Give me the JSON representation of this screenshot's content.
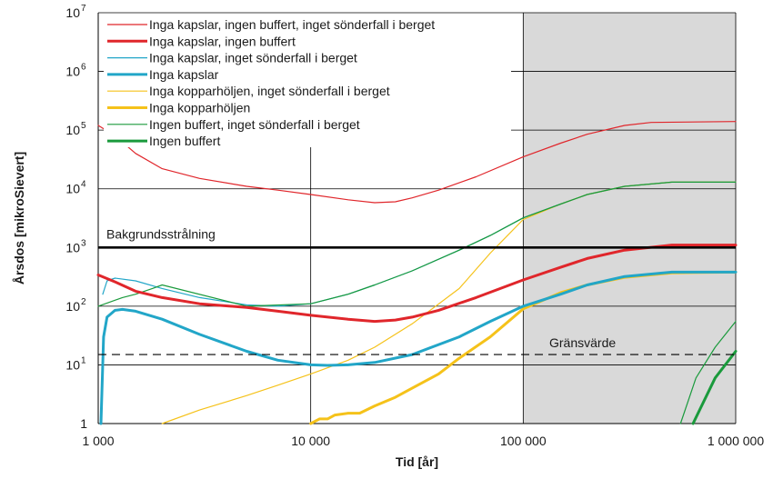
{
  "chart_data": {
    "type": "line",
    "title": "",
    "xlabel": "Tid [år]",
    "ylabel": "Årsdos [mikroSievert]",
    "x_scale": "log",
    "y_scale": "log",
    "xlim": [
      1000,
      1000000
    ],
    "ylim": [
      1,
      10000000
    ],
    "x_ticks": [
      {
        "value": 1000,
        "label": "1 000"
      },
      {
        "value": 10000,
        "label": "10 000"
      },
      {
        "value": 100000,
        "label": "100 000"
      },
      {
        "value": 1000000,
        "label": "1 000 000"
      }
    ],
    "y_ticks": [
      {
        "value": 1,
        "base": "1",
        "exp": ""
      },
      {
        "value": 10,
        "base": "10",
        "exp": "1"
      },
      {
        "value": 100,
        "base": "10",
        "exp": "2"
      },
      {
        "value": 1000,
        "base": "10",
        "exp": "3"
      },
      {
        "value": 10000,
        "base": "10",
        "exp": "4"
      },
      {
        "value": 100000,
        "base": "10",
        "exp": "5"
      },
      {
        "value": 1000000,
        "base": "10",
        "exp": "6"
      },
      {
        "value": 10000000,
        "base": "10",
        "exp": "7"
      }
    ],
    "grid": "horizontal major lines",
    "legend_position": "top-left",
    "shaded_region": {
      "x_from": 100000,
      "x_to": 1000000,
      "color": "#d9d9d9"
    },
    "vertical_marker_x": 10000,
    "reference_lines": [
      {
        "label": "Bakgrundsstrålning",
        "y": 1000,
        "style": "solid",
        "color": "#000000"
      },
      {
        "label": "Gränsvärde",
        "y": 15,
        "style": "dashed",
        "color": "#000000"
      }
    ],
    "series": [
      {
        "name": "Inga kapslar, ingen buffert, inget sönderfall i berget",
        "color": "#e0262b",
        "width": 1.2,
        "points": [
          [
            1000,
            120000
          ],
          [
            1200,
            80000
          ],
          [
            1500,
            40000
          ],
          [
            2000,
            22000
          ],
          [
            3000,
            15000
          ],
          [
            5000,
            11000
          ],
          [
            7000,
            9500
          ],
          [
            10000,
            8000
          ],
          [
            15000,
            6500
          ],
          [
            20000,
            5800
          ],
          [
            25000,
            6000
          ],
          [
            30000,
            7000
          ],
          [
            40000,
            9500
          ],
          [
            60000,
            16000
          ],
          [
            100000,
            35000
          ],
          [
            150000,
            60000
          ],
          [
            200000,
            85000
          ],
          [
            300000,
            120000
          ],
          [
            400000,
            135000
          ],
          [
            1000000,
            140000
          ]
        ]
      },
      {
        "name": "Inga kapslar, ingen buffert",
        "color": "#e0262b",
        "width": 3,
        "points": [
          [
            1000,
            340
          ],
          [
            1200,
            260
          ],
          [
            1500,
            180
          ],
          [
            2000,
            140
          ],
          [
            3000,
            110
          ],
          [
            5000,
            95
          ],
          [
            7000,
            82
          ],
          [
            10000,
            70
          ],
          [
            15000,
            60
          ],
          [
            20000,
            55
          ],
          [
            25000,
            58
          ],
          [
            30000,
            65
          ],
          [
            40000,
            85
          ],
          [
            60000,
            140
          ],
          [
            100000,
            280
          ],
          [
            150000,
            460
          ],
          [
            200000,
            650
          ],
          [
            300000,
            900
          ],
          [
            500000,
            1100
          ],
          [
            1000000,
            1100
          ]
        ]
      },
      {
        "name": "Inga kapslar, inget sönderfall i berget",
        "color": "#22a6c8",
        "width": 1.2,
        "points": [
          [
            1050,
            160
          ],
          [
            1100,
            270
          ],
          [
            1200,
            300
          ],
          [
            1500,
            270
          ],
          [
            2000,
            200
          ],
          [
            3000,
            140
          ],
          [
            5000,
            105
          ],
          [
            7000,
            100
          ],
          [
            10000,
            110
          ],
          [
            15000,
            160
          ],
          [
            20000,
            230
          ],
          [
            30000,
            400
          ],
          [
            50000,
            900
          ],
          [
            70000,
            1600
          ],
          [
            100000,
            3200
          ],
          [
            150000,
            5500
          ],
          [
            200000,
            8000
          ],
          [
            300000,
            11000
          ],
          [
            500000,
            13000
          ],
          [
            1000000,
            13000
          ]
        ]
      },
      {
        "name": "Inga kapslar",
        "color": "#22a6c8",
        "width": 3,
        "points": [
          [
            1030,
            1
          ],
          [
            1060,
            30
          ],
          [
            1100,
            65
          ],
          [
            1200,
            85
          ],
          [
            1300,
            88
          ],
          [
            1500,
            82
          ],
          [
            2000,
            60
          ],
          [
            3000,
            33
          ],
          [
            5000,
            17
          ],
          [
            7000,
            12
          ],
          [
            10000,
            10
          ],
          [
            12000,
            9.8
          ],
          [
            15000,
            10
          ],
          [
            20000,
            11
          ],
          [
            30000,
            15
          ],
          [
            50000,
            30
          ],
          [
            70000,
            55
          ],
          [
            100000,
            100
          ],
          [
            150000,
            160
          ],
          [
            200000,
            230
          ],
          [
            300000,
            320
          ],
          [
            500000,
            380
          ],
          [
            1000000,
            380
          ]
        ]
      },
      {
        "name": "Inga kopparhöljen, inget sönderfall i berget",
        "color": "#f5c21a",
        "width": 1.2,
        "points": [
          [
            2000,
            1
          ],
          [
            3000,
            1.7
          ],
          [
            5000,
            3
          ],
          [
            7000,
            4.5
          ],
          [
            10000,
            7
          ],
          [
            15000,
            12
          ],
          [
            20000,
            20
          ],
          [
            30000,
            50
          ],
          [
            50000,
            200
          ],
          [
            70000,
            800
          ],
          [
            100000,
            3000
          ],
          [
            150000,
            5500
          ],
          [
            200000,
            8000
          ],
          [
            300000,
            11000
          ],
          [
            500000,
            13000
          ],
          [
            1000000,
            13000
          ]
        ]
      },
      {
        "name": "Inga kopparhöljen",
        "color": "#f5c21a",
        "width": 3,
        "points": [
          [
            10000,
            1
          ],
          [
            11000,
            1.2
          ],
          [
            12000,
            1.2
          ],
          [
            13000,
            1.4
          ],
          [
            15000,
            1.5
          ],
          [
            17000,
            1.5
          ],
          [
            20000,
            2
          ],
          [
            25000,
            2.8
          ],
          [
            30000,
            4
          ],
          [
            40000,
            7
          ],
          [
            50000,
            13
          ],
          [
            70000,
            30
          ],
          [
            100000,
            90
          ],
          [
            150000,
            170
          ],
          [
            200000,
            230
          ],
          [
            300000,
            310
          ],
          [
            500000,
            370
          ],
          [
            1000000,
            380
          ]
        ]
      },
      {
        "name": "Ingen buffert, inget sönderfall i berget",
        "color": "#1a9a3c",
        "width": 1.2,
        "points": [
          [
            1000,
            100
          ],
          [
            1300,
            140
          ],
          [
            1500,
            160
          ],
          [
            1800,
            200
          ],
          [
            2000,
            230
          ],
          [
            5000,
            100
          ],
          [
            10000,
            110
          ],
          [
            15000,
            160
          ],
          [
            20000,
            230
          ],
          [
            30000,
            400
          ],
          [
            50000,
            900
          ],
          [
            70000,
            1600
          ],
          [
            100000,
            3200
          ],
          [
            150000,
            5500
          ],
          [
            200000,
            8000
          ],
          [
            300000,
            11000
          ],
          [
            500000,
            13000
          ],
          [
            1000000,
            13000
          ]
        ]
      },
      {
        "name": "Ingen buffert",
        "color": "#1a9a3c",
        "width": 3,
        "points": [
          [
            630000,
            1
          ],
          [
            800000,
            6
          ],
          [
            1000000,
            17
          ]
        ]
      }
    ],
    "series_steep_tail": {
      "name": "Ingen buffert, inget sönderfall i berget",
      "points": [
        [
          550000,
          1
        ],
        [
          650000,
          6
        ],
        [
          800000,
          20
        ],
        [
          1000000,
          55
        ]
      ]
    }
  }
}
